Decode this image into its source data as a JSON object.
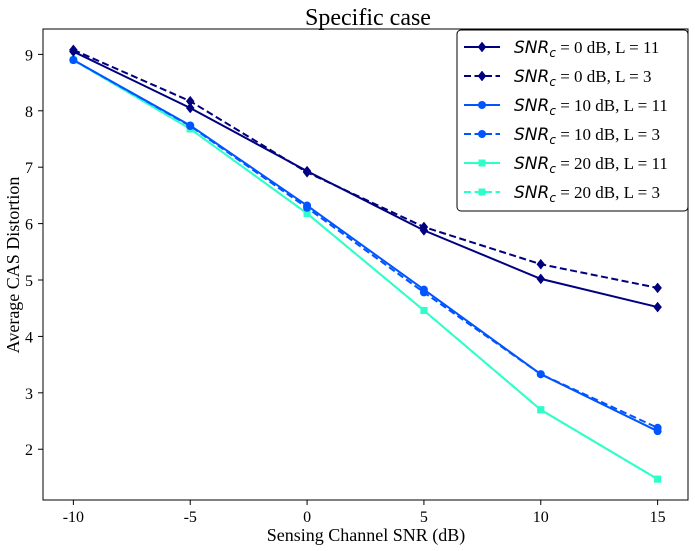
{
  "chart_data": {
    "type": "line",
    "title": "Specific case",
    "xlabel": "Sensing Channel SNR (dB)",
    "ylabel": "Average CAS Distortion",
    "x": [
      -10,
      -5,
      0,
      5,
      10,
      15
    ],
    "x_tick_labels": [
      "-10",
      "-5",
      "0",
      "5",
      "10",
      "15"
    ],
    "y_ticks": [
      2,
      3,
      4,
      5,
      6,
      7,
      8,
      9
    ],
    "y_tick_labels": [
      "2",
      "3",
      "4",
      "5",
      "6",
      "7",
      "8",
      "9"
    ],
    "xlim": [
      -11.3,
      16.3
    ],
    "ylim": [
      1.1,
      9.45
    ],
    "grid": false,
    "legend_position": "top-right",
    "series": [
      {
        "name": "SNR_c = 0 dB, L = 11",
        "legend_prefix": "SNR",
        "legend_sub": "c",
        "legend_suffix": " = 0 dB, L = 11",
        "values": [
          9.05,
          8.05,
          6.93,
          5.88,
          5.02,
          4.52
        ],
        "color": "#000080",
        "dash": "solid",
        "marker": "diamond"
      },
      {
        "name": "SNR_c = 0 dB, L = 3",
        "legend_prefix": "SNR",
        "legend_sub": "c",
        "legend_suffix": " = 0 dB, L = 3",
        "values": [
          9.08,
          8.17,
          6.91,
          5.94,
          5.28,
          4.86
        ],
        "color": "#000080",
        "dash": "dashed",
        "marker": "diamond"
      },
      {
        "name": "SNR_c = 10 dB, L = 11",
        "legend_prefix": "SNR",
        "legend_sub": "c",
        "legend_suffix": " = 10 dB, L = 11",
        "values": [
          8.9,
          7.74,
          6.32,
          4.83,
          3.33,
          2.32
        ],
        "color": "#0055ff",
        "dash": "solid",
        "marker": "circle"
      },
      {
        "name": "SNR_c = 10 dB, L = 3",
        "legend_prefix": "SNR",
        "legend_sub": "c",
        "legend_suffix": " = 10 dB, L = 3",
        "values": [
          8.9,
          7.73,
          6.28,
          4.78,
          3.33,
          2.38
        ],
        "color": "#0055ff",
        "dash": "dashed",
        "marker": "circle"
      },
      {
        "name": "SNR_c = 20 dB, L = 11",
        "legend_prefix": "SNR",
        "legend_sub": "c",
        "legend_suffix": " = 20 dB, L = 11",
        "values": [
          8.9,
          7.68,
          6.18,
          4.46,
          2.7,
          1.47
        ],
        "color": "#2effc8",
        "dash": "solid",
        "marker": "square"
      },
      {
        "name": "SNR_c = 20 dB, L = 3",
        "legend_prefix": "SNR",
        "legend_sub": "c",
        "legend_suffix": " = 20 dB, L = 3",
        "values": [
          8.9,
          7.68,
          6.18,
          4.46,
          2.7,
          1.47
        ],
        "color": "#2effc8",
        "dash": "dashed",
        "marker": "square"
      }
    ]
  }
}
